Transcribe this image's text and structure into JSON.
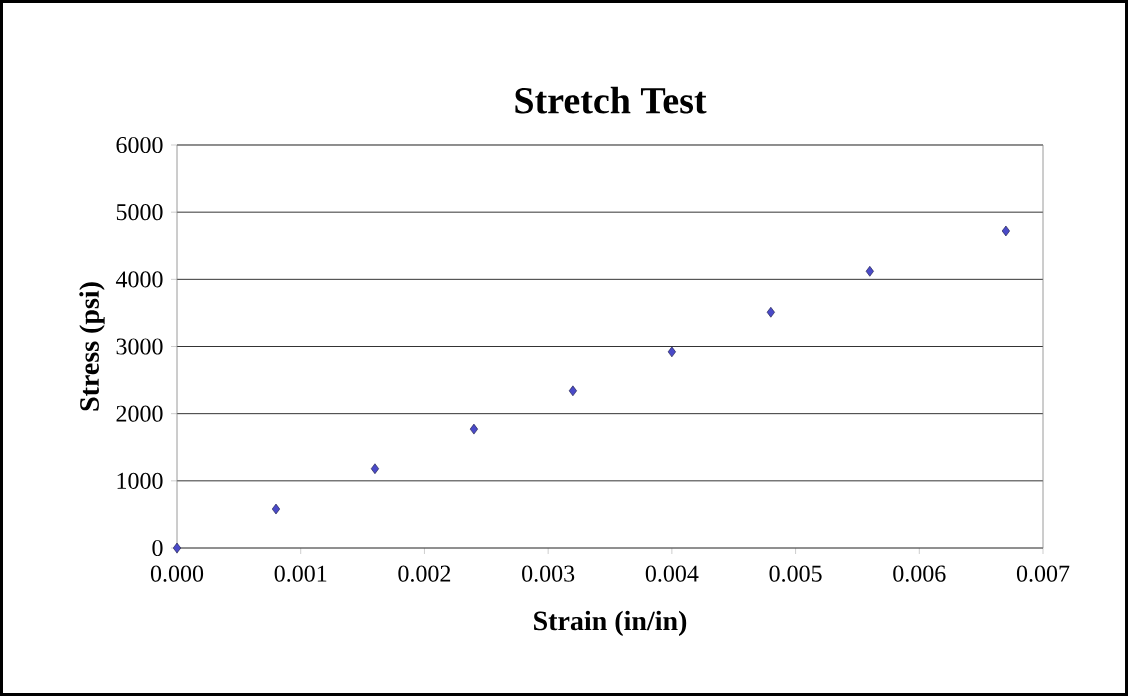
{
  "chart_data": {
    "type": "scatter",
    "title": "Stretch Test",
    "xlabel": "Strain (in/in)",
    "ylabel": "Stress (psi)",
    "x": [
      0,
      0.0008,
      0.0016,
      0.0024,
      0.0032,
      0.004,
      0.0048,
      0.0056,
      0.0067
    ],
    "values": [
      0,
      580,
      1180,
      1770,
      2340,
      2920,
      3510,
      4120,
      4720
    ],
    "color": "#4a4ac8",
    "marker": "diamond",
    "grid": "y",
    "xlim": [
      0,
      0.007
    ],
    "xticks": [
      {
        "value": 0,
        "label": "0.000"
      },
      {
        "value": 0.001,
        "label": "0.001"
      },
      {
        "value": 0.002,
        "label": "0.002"
      },
      {
        "value": 0.003,
        "label": "0.003"
      },
      {
        "value": 0.004,
        "label": "0.004"
      },
      {
        "value": 0.005,
        "label": "0.005"
      },
      {
        "value": 0.006,
        "label": "0.006"
      },
      {
        "value": 0.007,
        "label": "0.007"
      }
    ],
    "ylim": [
      0,
      6000
    ],
    "yticks": [
      0,
      1000,
      2000,
      3000,
      4000,
      5000,
      6000
    ]
  }
}
